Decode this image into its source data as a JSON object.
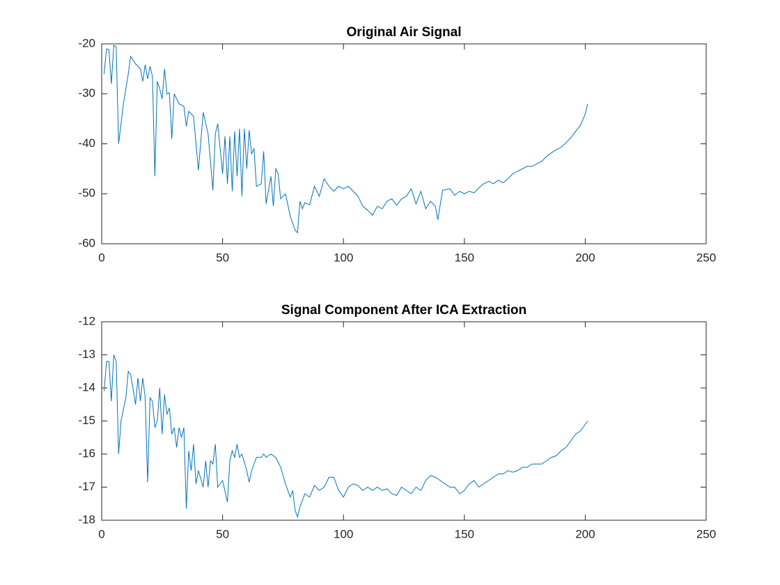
{
  "chart_data": [
    {
      "type": "line",
      "title": "Original Air Signal",
      "color": "#0072bd",
      "xlim": [
        0,
        250
      ],
      "ylim": [
        -60,
        -20
      ],
      "xticks": [
        0,
        50,
        100,
        150,
        200,
        250
      ],
      "yticks": [
        -60,
        -50,
        -40,
        -30,
        -20
      ],
      "x": [
        1,
        2,
        3,
        4,
        5,
        6,
        7,
        9,
        11,
        12,
        14,
        16,
        17,
        18,
        19,
        20,
        21,
        22,
        23,
        24,
        25,
        26,
        27,
        28,
        29,
        30,
        32,
        34,
        35,
        36,
        38,
        40,
        42,
        44,
        46,
        47,
        48,
        50,
        51,
        52,
        53,
        54,
        55,
        56,
        57,
        58,
        59,
        60,
        61,
        62,
        63,
        64,
        66,
        67,
        68,
        70,
        71,
        72,
        73,
        74,
        76,
        78,
        80,
        81,
        82,
        83,
        84,
        86,
        88,
        90,
        92,
        94,
        96,
        98,
        100,
        102,
        104,
        106,
        108,
        110,
        112,
        114,
        116,
        118,
        120,
        122,
        124,
        126,
        128,
        130,
        132,
        134,
        136,
        138,
        139,
        141,
        144,
        146,
        148,
        150,
        152,
        154,
        156,
        158,
        160,
        162,
        164,
        166,
        168,
        170,
        172,
        174,
        176,
        178,
        180,
        182,
        184,
        186,
        188,
        190,
        192,
        194,
        196,
        198,
        200,
        201
      ],
      "values": [
        -26,
        -21,
        -21.2,
        -28,
        -20.3,
        -20.6,
        -40,
        -32,
        -26,
        -22.5,
        -24,
        -25,
        -27.5,
        -24.2,
        -27,
        -24.5,
        -26.5,
        -46.5,
        -27.5,
        -29,
        -31,
        -25,
        -30,
        -29.8,
        -39,
        -30,
        -32,
        -32.5,
        -36.5,
        -33.5,
        -34.5,
        -45.3,
        -33.7,
        -38,
        -49.3,
        -38,
        -36,
        -46,
        -38.5,
        -48,
        -38.5,
        -49.5,
        -37.5,
        -46.5,
        -37,
        -50.5,
        -37,
        -45,
        -37.3,
        -42,
        -41,
        -48.5,
        -48,
        -41.5,
        -52,
        -46.5,
        -52.5,
        -45,
        -46,
        -51,
        -50,
        -54.5,
        -57.3,
        -57.8,
        -51.5,
        -53,
        -51.8,
        -52.2,
        -48.5,
        -50.5,
        -47,
        -48.5,
        -49.5,
        -48.5,
        -49,
        -48.5,
        -49.5,
        -50.5,
        -52.5,
        -53.3,
        -54.3,
        -52.5,
        -53,
        -51.5,
        -51,
        -52.3,
        -51,
        -50.5,
        -49,
        -52,
        -49.5,
        -53,
        -51.5,
        -52.5,
        -55.2,
        -49.3,
        -49,
        -50.3,
        -49.5,
        -50,
        -49.5,
        -49.8,
        -48.8,
        -48,
        -47.5,
        -48,
        -47.3,
        -47.8,
        -47,
        -46,
        -45.5,
        -45,
        -44.5,
        -44.5,
        -44,
        -43.5,
        -42.5,
        -41.8,
        -41.2,
        -40.7,
        -39.8,
        -38.8,
        -37.5,
        -36.3,
        -34,
        -32
      ]
    },
    {
      "type": "line",
      "title": "Signal Component After ICA Extraction",
      "color": "#0072bd",
      "xlim": [
        0,
        250
      ],
      "ylim": [
        -18,
        -12
      ],
      "xticks": [
        0,
        50,
        100,
        150,
        200,
        250
      ],
      "yticks": [
        -18,
        -17,
        -16,
        -15,
        -14,
        -13,
        -12
      ],
      "x": [
        1,
        2,
        3,
        4,
        5,
        6,
        7,
        8,
        10,
        11,
        12,
        14,
        15,
        16,
        17,
        18,
        19,
        20,
        21,
        22,
        23,
        24,
        25,
        26,
        27,
        28,
        29,
        30,
        31,
        32,
        33,
        34,
        35,
        36,
        37,
        38,
        39,
        40,
        42,
        43,
        44,
        45,
        46,
        47,
        48,
        50,
        52,
        53,
        54,
        55,
        56,
        57,
        58,
        60,
        61,
        62,
        64,
        66,
        67,
        68,
        70,
        72,
        74,
        76,
        78,
        79,
        80,
        81,
        82,
        84,
        86,
        88,
        90,
        92,
        94,
        96,
        98,
        100,
        102,
        104,
        106,
        108,
        110,
        112,
        114,
        116,
        118,
        120,
        122,
        124,
        126,
        128,
        130,
        132,
        134,
        136,
        138,
        140,
        142,
        144,
        146,
        148,
        150,
        152,
        154,
        156,
        158,
        160,
        162,
        164,
        166,
        168,
        170,
        172,
        174,
        176,
        178,
        180,
        182,
        184,
        186,
        188,
        190,
        192,
        194,
        196,
        198,
        200,
        201
      ],
      "values": [
        -14.1,
        -13.2,
        -13.2,
        -14.4,
        -13,
        -13.2,
        -16,
        -15,
        -14.3,
        -13.5,
        -13.6,
        -14.5,
        -13.7,
        -14.4,
        -13.7,
        -14.3,
        -16.85,
        -14.3,
        -14.4,
        -15.2,
        -15,
        -14,
        -15.4,
        -14.2,
        -14.8,
        -14.6,
        -15.4,
        -15.2,
        -15.8,
        -15.2,
        -15.5,
        -15.2,
        -17.65,
        -15.9,
        -16.5,
        -15.7,
        -16.9,
        -16.5,
        -17,
        -16.2,
        -17,
        -16.2,
        -16.3,
        -15.7,
        -17,
        -16.8,
        -17.45,
        -16.2,
        -15.9,
        -16.1,
        -15.7,
        -16.1,
        -16,
        -16.5,
        -16.85,
        -16.5,
        -16.1,
        -16.1,
        -16,
        -16.1,
        -16,
        -16.1,
        -16.4,
        -16.9,
        -17.3,
        -17.1,
        -17.7,
        -17.9,
        -17.6,
        -17.2,
        -17.3,
        -16.95,
        -17.1,
        -17,
        -16.7,
        -16.7,
        -17.1,
        -17.3,
        -17,
        -16.9,
        -16.95,
        -17.1,
        -17,
        -17.1,
        -17,
        -17.1,
        -17.05,
        -17.2,
        -17.25,
        -17,
        -17.1,
        -17.2,
        -17,
        -17.1,
        -16.8,
        -16.65,
        -16.7,
        -16.8,
        -16.9,
        -17,
        -17,
        -17.2,
        -17.1,
        -16.9,
        -16.8,
        -17,
        -16.9,
        -16.8,
        -16.7,
        -16.6,
        -16.6,
        -16.5,
        -16.55,
        -16.5,
        -16.4,
        -16.4,
        -16.3,
        -16.3,
        -16.3,
        -16.2,
        -16.1,
        -16.05,
        -15.9,
        -15.8,
        -15.6,
        -15.4,
        -15.3,
        -15.1,
        -15
      ]
    }
  ]
}
